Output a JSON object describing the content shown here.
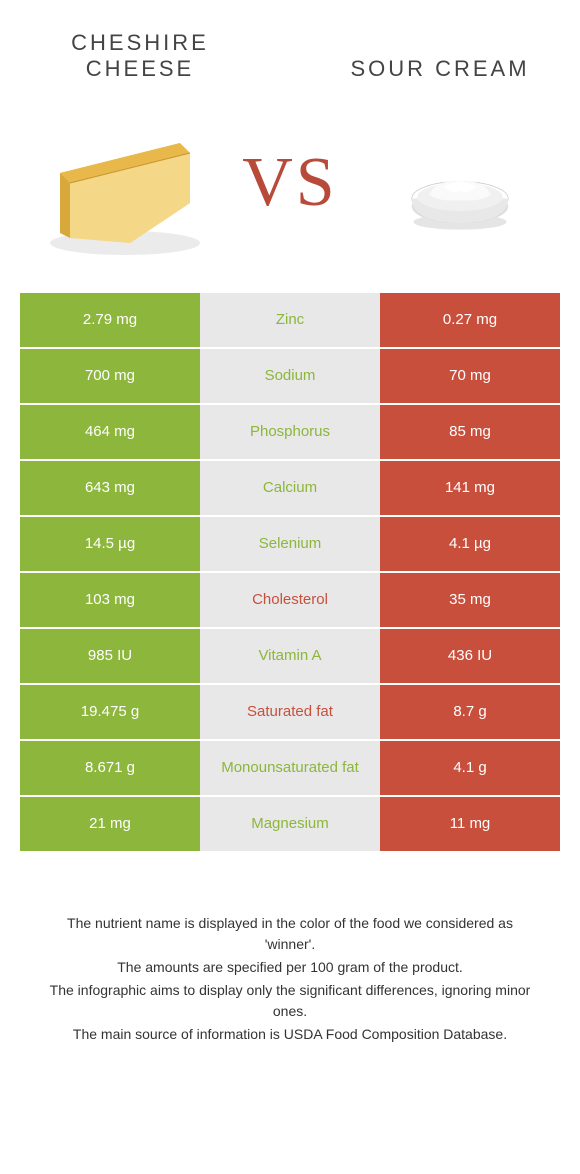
{
  "header": {
    "left_title": "CHESHIRE CHEESE",
    "right_title": "SOUR CREAM",
    "vs": "VS"
  },
  "colors": {
    "left": "#8cb63c",
    "right": "#c94f3d",
    "mid": "#e8e8e8",
    "label_left_winner": "#8cb63c",
    "label_right_winner": "#c94f3d"
  },
  "rows": [
    {
      "left": "2.79 mg",
      "label": "Zinc",
      "right": "0.27 mg",
      "winner": "left"
    },
    {
      "left": "700 mg",
      "label": "Sodium",
      "right": "70 mg",
      "winner": "left"
    },
    {
      "left": "464 mg",
      "label": "Phosphorus",
      "right": "85 mg",
      "winner": "left"
    },
    {
      "left": "643 mg",
      "label": "Calcium",
      "right": "141 mg",
      "winner": "left"
    },
    {
      "left": "14.5 µg",
      "label": "Selenium",
      "right": "4.1 µg",
      "winner": "left"
    },
    {
      "left": "103 mg",
      "label": "Cholesterol",
      "right": "35 mg",
      "winner": "right"
    },
    {
      "left": "985 IU",
      "label": "Vitamin A",
      "right": "436 IU",
      "winner": "left"
    },
    {
      "left": "19.475 g",
      "label": "Saturated fat",
      "right": "8.7 g",
      "winner": "right"
    },
    {
      "left": "8.671 g",
      "label": "Monounsaturated fat",
      "right": "4.1 g",
      "winner": "left"
    },
    {
      "left": "21 mg",
      "label": "Magnesium",
      "right": "11 mg",
      "winner": "left"
    }
  ],
  "footer": {
    "line1": "The nutrient name is displayed in the color of the food we considered as 'winner'.",
    "line2": "The amounts are specified per 100 gram of the product.",
    "line3": "The infographic aims to display only the significant differences, ignoring minor ones.",
    "line4": "The main source of information is USDA Food Composition Database."
  }
}
